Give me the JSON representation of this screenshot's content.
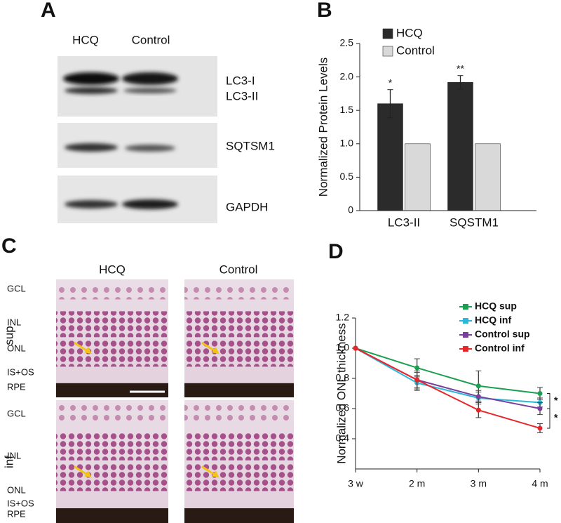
{
  "panel_labels": [
    "A",
    "B",
    "C",
    "D"
  ],
  "blot": {
    "columns": [
      "HCQ",
      "Control"
    ],
    "bands": [
      "LC3-I",
      "LC3-II",
      "SQTSM1",
      "GAPDH"
    ]
  },
  "histology": {
    "columns": [
      "HCQ",
      "Control"
    ],
    "rows": [
      {
        "label": "sup",
        "layers": [
          "GCL",
          "INL",
          "ONL",
          "IS+OS",
          "RPE"
        ]
      },
      {
        "label": "inf",
        "layers": [
          "GCL",
          "INL",
          "ONL",
          "IS+OS",
          "RPE"
        ]
      }
    ]
  },
  "chart_data": [
    {
      "type": "bar",
      "y_label": "Normalized Protein Levels",
      "categories": [
        "LC3-II",
        "SQSTM1"
      ],
      "series": [
        {
          "name": "HCQ",
          "color": "#2b2b2b",
          "values": [
            1.6,
            1.92
          ],
          "errors": [
            0.21,
            0.1
          ]
        },
        {
          "name": "Control",
          "color": "#d9d9d9",
          "values": [
            1,
            1
          ],
          "errors": [
            0,
            0
          ]
        }
      ],
      "annotations": [
        "*",
        "**"
      ],
      "ylim": [
        0,
        2.5
      ],
      "yticks": [
        0,
        0.5,
        {
          "value": 1,
          "label": "1.0"
        },
        1.5,
        {
          "value": 2,
          "label": "2.0"
        },
        2.5
      ],
      "legend": "top-left",
      "grid": false
    },
    {
      "type": "line",
      "y_label": "Normalized ONL thickness",
      "categories": [
        "3 w",
        "2 m",
        "3 m",
        "4 m"
      ],
      "series": [
        {
          "name": "HCQ sup",
          "color": "#1aa050",
          "values": [
            1.0,
            0.87,
            0.75,
            0.7
          ],
          "errors": [
            0,
            0.06,
            0.1,
            0.04
          ]
        },
        {
          "name": "HCQ inf",
          "color": "#2bb8d8",
          "values": [
            1.0,
            0.77,
            0.67,
            0.64
          ],
          "errors": [
            0,
            0.05,
            0.04,
            0.03
          ]
        },
        {
          "name": "Control sup",
          "color": "#7a3f9a",
          "values": [
            1.0,
            0.79,
            0.68,
            0.6
          ],
          "errors": [
            0,
            0.05,
            0.04,
            0.04
          ]
        },
        {
          "name": "Control inf",
          "color": "#e8262a",
          "values": [
            1.0,
            0.79,
            0.59,
            0.47
          ],
          "errors": [
            0,
            0.06,
            0.05,
            0.03
          ]
        }
      ],
      "annotations": [
        "*",
        "*"
      ],
      "ylim": [
        0.2,
        1.2
      ],
      "yticks": [
        {
          "value": 0.4,
          "label": "0.4"
        },
        {
          "value": 0.6,
          "label": "0.6"
        },
        {
          "value": 0.8,
          "label": "0.8"
        },
        {
          "value": 1,
          "label": "1.0"
        },
        {
          "value": 1.2,
          "label": "1.2"
        }
      ],
      "legend": "top-right",
      "grid": false
    }
  ]
}
